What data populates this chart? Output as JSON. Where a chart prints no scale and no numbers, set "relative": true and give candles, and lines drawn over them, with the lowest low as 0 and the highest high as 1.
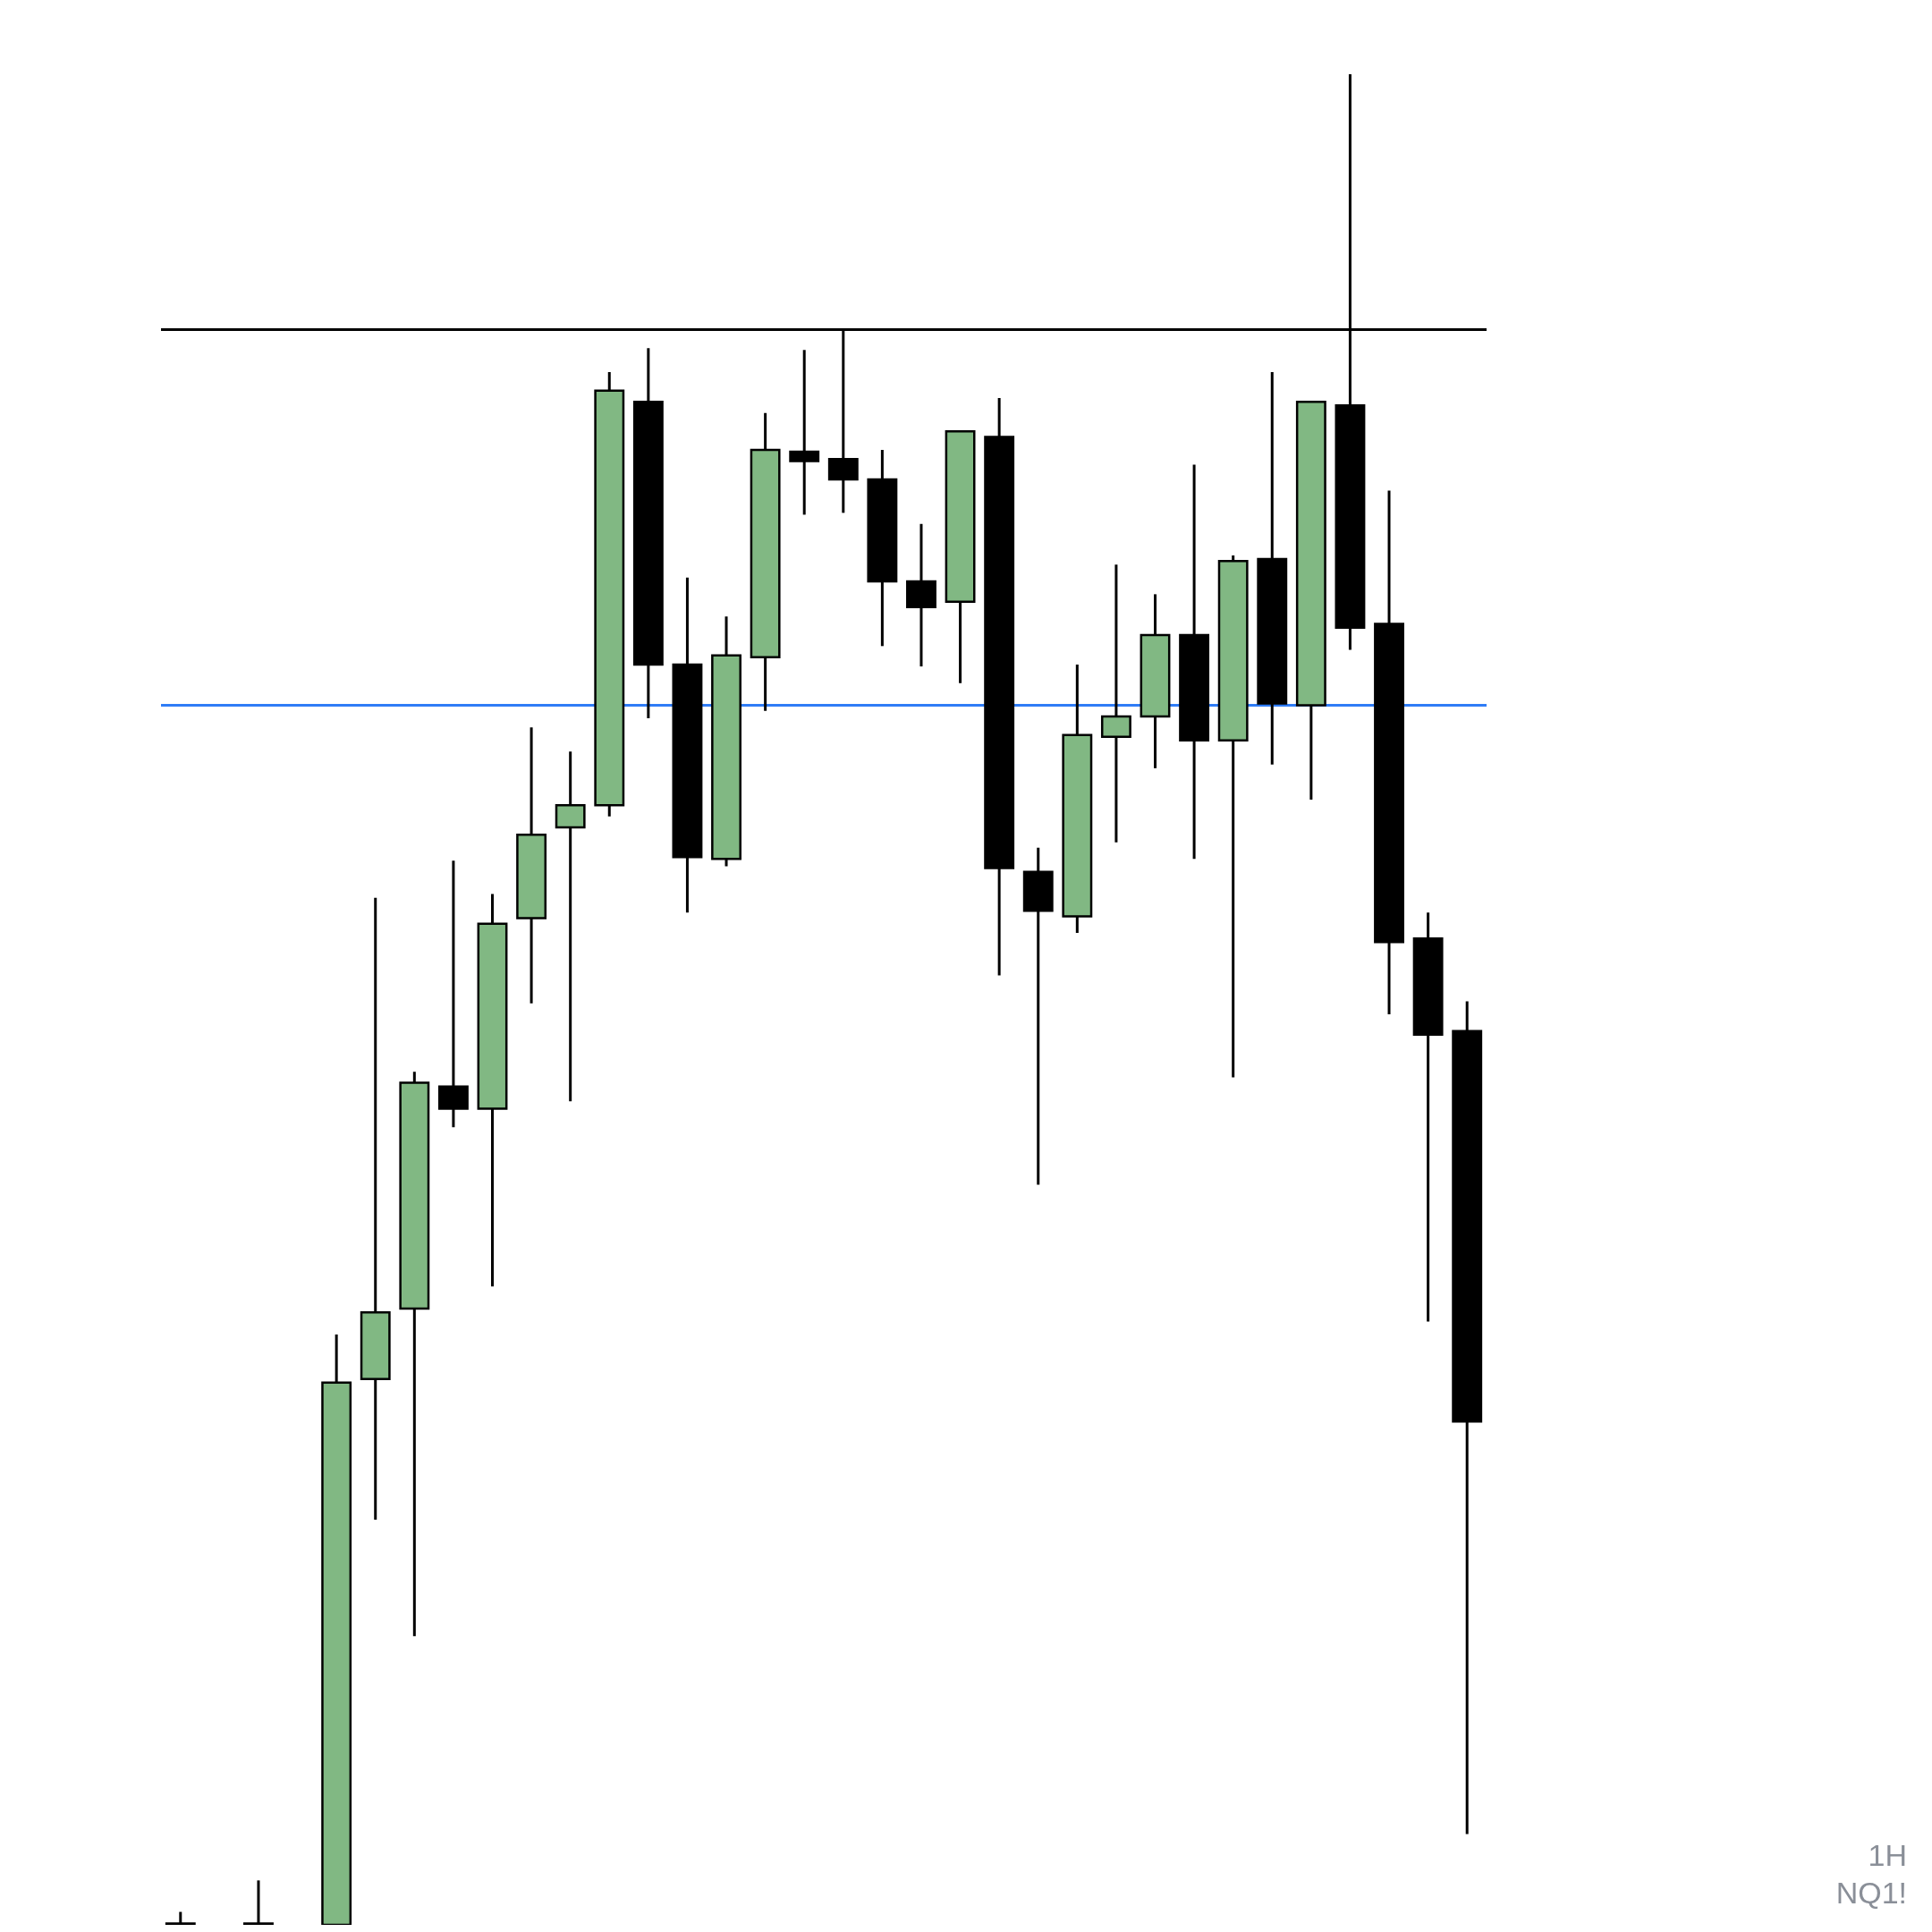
{
  "chart_data": {
    "type": "candlestick",
    "relative": true,
    "tick_labels": false,
    "categories": [
      null,
      null,
      null,
      null,
      null,
      null,
      null,
      null,
      null,
      null,
      null,
      null,
      null,
      null,
      null,
      null,
      null,
      null,
      null,
      null,
      null,
      null,
      null,
      null,
      null,
      null,
      null,
      null,
      null,
      null,
      null,
      null,
      null,
      null
    ],
    "ohlc": [
      [
        0,
        0.007,
        0,
        0
      ],
      null,
      [
        0,
        0.024,
        0,
        0
      ],
      null,
      [
        0,
        0.319,
        0,
        0.293
      ],
      [
        0.295,
        0.555,
        0.219,
        0.331
      ],
      [
        0.333,
        0.461,
        0.156,
        0.455
      ],
      [
        0.453,
        0.575,
        0.431,
        0.441
      ],
      [
        0.441,
        0.557,
        0.345,
        0.541
      ],
      [
        0.544,
        0.647,
        0.498,
        0.589
      ],
      [
        0.593,
        0.634,
        0.445,
        0.605
      ],
      [
        0.605,
        0.839,
        0.599,
        0.829
      ],
      [
        0.823,
        0.852,
        0.652,
        0.681
      ],
      [
        0.681,
        0.728,
        0.547,
        0.577
      ],
      [
        0.576,
        0.707,
        0.572,
        0.686
      ],
      [
        0.685,
        0.817,
        0.656,
        0.797
      ],
      [
        0.796,
        0.851,
        0.762,
        0.791
      ],
      [
        0.792,
        0.862,
        0.763,
        0.781
      ],
      [
        0.781,
        0.797,
        0.691,
        0.726
      ],
      [
        0.726,
        0.757,
        0.68,
        0.712
      ],
      [
        0.715,
        0.807,
        0.671,
        0.807
      ],
      [
        0.804,
        0.825,
        0.513,
        0.571
      ],
      [
        0.569,
        0.582,
        0.4,
        0.548
      ],
      [
        0.545,
        0.681,
        0.536,
        0.643
      ],
      [
        0.642,
        0.735,
        0.585,
        0.653
      ],
      [
        0.653,
        0.719,
        0.625,
        0.697
      ],
      [
        0.697,
        0.789,
        0.576,
        0.64
      ],
      [
        0.64,
        0.74,
        0.458,
        0.737
      ],
      [
        0.738,
        0.839,
        0.627,
        0.66
      ],
      [
        0.659,
        0.823,
        0.608,
        0.823
      ],
      [
        0.821,
        1,
        0.689,
        0.701
      ],
      [
        0.703,
        0.775,
        0.492,
        0.531
      ],
      [
        0.533,
        0.547,
        0.326,
        0.481
      ],
      [
        0.483,
        0.499,
        0.049,
        0.272
      ]
    ],
    "colors": [
      "#000000",
      null,
      "#000000",
      null,
      "#81b883",
      "#81b883",
      "#81b883",
      "#000000",
      "#81b883",
      "#81b883",
      "#81b883",
      "#81b883",
      "#000000",
      "#000000",
      "#81b883",
      "#81b883",
      "#000000",
      "#000000",
      "#000000",
      "#000000",
      "#81b883",
      "#000000",
      "#000000",
      "#81b883",
      "#81b883",
      "#81b883",
      "#000000",
      "#81b883",
      "#000000",
      "#81b883",
      "#000000",
      "#000000",
      "#000000",
      "#000000"
    ],
    "ref_lines": [
      {
        "axis": "y",
        "value": 0.862,
        "color": "#000000"
      },
      {
        "axis": "y",
        "value": 0.659,
        "color": "#2f7cf6"
      }
    ],
    "annotations": [
      "1H",
      "NQ1!"
    ]
  }
}
